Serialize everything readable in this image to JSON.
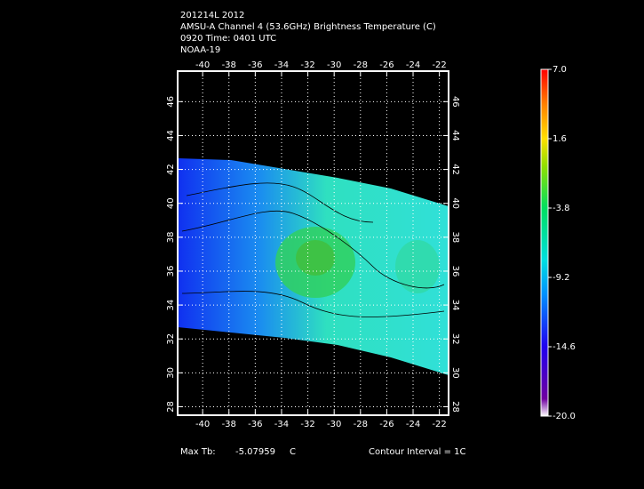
{
  "chart_data": {
    "type": "map",
    "title_lines": [
      "201214L 2012",
      "AMSU-A Channel 4 (53.6GHz) Brightness Temperature (C)",
      "0920 Time: 0401 UTC",
      "NOAA-19"
    ],
    "xlim": [
      -41.9,
      -21.3
    ],
    "ylim": [
      27.5,
      47.8
    ],
    "xticks": [
      -40,
      -38,
      -36,
      -34,
      -32,
      -30,
      -28,
      -26,
      -24,
      -22
    ],
    "yticks": [
      28,
      30,
      32,
      34,
      36,
      38,
      40,
      42,
      44,
      46
    ],
    "grid": true,
    "colorbar_lim": [
      -20,
      7
    ],
    "colorbar_ticks": [
      {
        "value": 7,
        "label": "7.0"
      },
      {
        "value": 1.6,
        "label": "1.6"
      },
      {
        "value": -3.8,
        "label": "-3.8"
      },
      {
        "value": -9.2,
        "label": "-9.2"
      },
      {
        "value": -14.6,
        "label": "-14.6"
      },
      {
        "value": -20,
        "label": "-20.0"
      }
    ],
    "max_tb_label": "Max Tb:",
    "max_tb": -5.07959,
    "max_tb_unit": "C",
    "contour_interval": "Contour Interval = 1C"
  }
}
